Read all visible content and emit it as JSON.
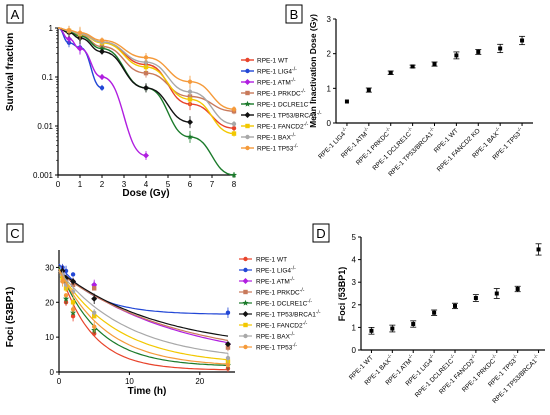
{
  "chart_data": [
    {
      "panel": "A",
      "type": "line",
      "xlabel": "Dose (Gy)",
      "ylabel": "Survival fraction",
      "x_ticks": [
        0,
        1,
        2,
        3,
        4,
        5,
        6,
        7,
        8
      ],
      "y_tick_labels": [
        "1",
        "0.1",
        "0.01",
        "0.001"
      ],
      "y_scale": "log",
      "xlim": [
        0,
        8
      ],
      "ylim": [
        0.001,
        1
      ],
      "legend_position": "right",
      "series": [
        {
          "name": "RPE-1 WT",
          "color": "#e8432b",
          "x": [
            0,
            0.5,
            1,
            2,
            4,
            6,
            8
          ],
          "y": [
            1,
            0.88,
            0.74,
            0.52,
            0.18,
            0.028,
            0.009
          ]
        },
        {
          "name": "RPE-1 LIG4",
          "sup": "-/-",
          "color": "#2247d6",
          "x": [
            0,
            0.5,
            1,
            2
          ],
          "y": [
            1,
            0.5,
            0.4,
            0.06
          ]
        },
        {
          "name": "RPE-1 ATM",
          "sup": "-/-",
          "color": "#b01ee0",
          "x": [
            0,
            0.5,
            1,
            2,
            4
          ],
          "y": [
            1,
            0.6,
            0.38,
            0.1,
            0.0025
          ]
        },
        {
          "name": "RPE-1 PRKDC",
          "sup": "-/-",
          "color": "#c8795a",
          "x": [
            0,
            0.5,
            1,
            2,
            4,
            6,
            8
          ],
          "y": [
            1,
            0.85,
            0.7,
            0.42,
            0.12,
            0.04,
            0.02
          ]
        },
        {
          "name": "RPE-1 DCLRE1C",
          "sup": "-/-",
          "color": "#1a7a2a",
          "x": [
            0,
            0.5,
            1,
            2,
            4,
            6,
            8
          ],
          "y": [
            1,
            0.85,
            0.68,
            0.38,
            0.06,
            0.006,
            0.0009
          ]
        },
        {
          "name": "RPE-1 TP53/BRCA1",
          "sup": "-/-",
          "color": "#111111",
          "x": [
            0,
            0.5,
            1,
            2,
            4,
            6
          ],
          "y": [
            1,
            0.8,
            0.62,
            0.33,
            0.06,
            0.012
          ]
        },
        {
          "name": "RPE-1 FANCD2",
          "sup": "-/-",
          "color": "#f2c800",
          "x": [
            0,
            0.5,
            1,
            2,
            4,
            6,
            8
          ],
          "y": [
            1,
            0.88,
            0.75,
            0.5,
            0.16,
            0.035,
            0.007
          ]
        },
        {
          "name": "RPE-1 BAX",
          "sup": "-/-",
          "color": "#a8a8a8",
          "x": [
            0,
            0.5,
            1,
            2,
            4,
            6,
            8
          ],
          "y": [
            1,
            0.88,
            0.76,
            0.52,
            0.2,
            0.05,
            0.011
          ]
        },
        {
          "name": "RPE-1 TP53",
          "sup": "-/-",
          "color": "#f59a3a",
          "x": [
            0,
            0.5,
            1,
            2,
            4,
            6,
            8
          ],
          "y": [
            1,
            0.9,
            0.8,
            0.56,
            0.25,
            0.08,
            0.022
          ]
        }
      ]
    },
    {
      "panel": "B",
      "type": "scatter",
      "ylabel": "Mean Inactivation Dose (Gy)",
      "y_ticks": [
        0,
        1,
        2,
        3
      ],
      "ylim": [
        0,
        3
      ],
      "categories": [
        {
          "name": "RPE-1 LIG4",
          "sup": "-/-"
        },
        {
          "name": "RPE-1 ATM",
          "sup": "-/-"
        },
        {
          "name": "RPE-1 PRKDC",
          "sup": "-/-"
        },
        {
          "name": "RPE-1 DCLRE1C",
          "sup": "-/-"
        },
        {
          "name": "RPE-1 TP53/BRCA1",
          "sup": "-/-"
        },
        {
          "name": "RPE-1 WT",
          "sup": ""
        },
        {
          "name": "RPE-1 FANCD2 KO",
          "sup": ""
        },
        {
          "name": "RPE-1 BAX",
          "sup": "-/-"
        },
        {
          "name": "RPE-1 TP53",
          "sup": "-/-"
        }
      ],
      "values": [
        0.62,
        0.95,
        1.45,
        1.63,
        1.7,
        1.95,
        2.05,
        2.15,
        2.38
      ],
      "errors": [
        0.0,
        0.06,
        0.05,
        0.04,
        0.06,
        0.1,
        0.07,
        0.12,
        0.12
      ]
    },
    {
      "panel": "C",
      "type": "line",
      "xlabel": "Time (h)",
      "ylabel": "Foci (53BP1)",
      "x_ticks": [
        0,
        10,
        20
      ],
      "y_ticks": [
        0,
        10,
        20,
        30
      ],
      "xlim": [
        0,
        25
      ],
      "ylim": [
        0,
        35
      ],
      "legend_position": "right",
      "series": [
        {
          "name": "RPE-1 WT",
          "color": "#e8432b",
          "x": [
            0.5,
            1,
            2,
            5,
            24
          ],
          "y": [
            26,
            20,
            16,
            11,
            1
          ],
          "fit": {
            "y0": 30,
            "plateau": 0.5,
            "k": 0.22
          }
        },
        {
          "name": "RPE-1 LIG4",
          "sup": "-/-",
          "color": "#2247d6",
          "x": [
            0.5,
            1,
            2,
            5,
            24
          ],
          "y": [
            30,
            29,
            28,
            25,
            17
          ],
          "fit": {
            "y0": 31,
            "plateau": 16.5,
            "k": 0.2
          }
        },
        {
          "name": "RPE-1 ATM",
          "sup": "-/-",
          "color": "#b01ee0",
          "x": [
            0.5,
            1,
            2,
            5,
            24
          ],
          "y": [
            29,
            27,
            26,
            25,
            8
          ],
          "fit": {
            "y0": 29,
            "plateau": 2,
            "k": 0.06
          }
        },
        {
          "name": "RPE-1 PRKDC",
          "sup": "-/-",
          "color": "#c8795a",
          "x": [
            0.5,
            1,
            2,
            5,
            24
          ],
          "y": [
            28,
            26,
            25,
            24,
            7
          ],
          "fit": {
            "y0": 28.5,
            "plateau": 3,
            "k": 0.06
          }
        },
        {
          "name": "RPE-1 DCLRE1C",
          "sup": "-/-",
          "color": "#1a7a2a",
          "x": [
            0.5,
            1,
            2,
            5,
            24
          ],
          "y": [
            27,
            21,
            17,
            12,
            2
          ],
          "fit": {
            "y0": 30,
            "plateau": 1.5,
            "k": 0.18
          }
        },
        {
          "name": "RPE-1 TP53/BRCA1",
          "sup": "-/-",
          "color": "#111111",
          "x": [
            0.5,
            1,
            2,
            5,
            24
          ],
          "y": [
            29,
            27,
            26,
            21,
            8
          ],
          "fit": {
            "y0": 29,
            "plateau": 6,
            "k": 0.07
          }
        },
        {
          "name": "RPE-1 FANCD2",
          "sup": "-/-",
          "color": "#f2c800",
          "x": [
            0.5,
            1,
            2,
            5,
            24
          ],
          "y": [
            27,
            24,
            20,
            16,
            3
          ],
          "fit": {
            "y0": 29,
            "plateau": 2,
            "k": 0.12
          }
        },
        {
          "name": "RPE-1 BAX",
          "sup": "-/-",
          "color": "#a8a8a8",
          "x": [
            0.5,
            1,
            2,
            5,
            24
          ],
          "y": [
            28,
            25,
            23,
            17,
            4
          ],
          "fit": {
            "y0": 29,
            "plateau": 3,
            "k": 0.1
          }
        },
        {
          "name": "RPE-1 TP53",
          "sup": "-/-",
          "color": "#f59a3a",
          "x": [
            0.5,
            1,
            2,
            5,
            24
          ],
          "y": [
            26,
            22,
            18,
            13,
            2
          ],
          "fit": {
            "y0": 29.5,
            "plateau": 1.5,
            "k": 0.15
          }
        }
      ]
    },
    {
      "panel": "D",
      "type": "scatter",
      "ylabel": "Foci (53BP1)",
      "y_ticks": [
        0,
        1,
        2,
        3,
        4,
        5
      ],
      "ylim": [
        0,
        5
      ],
      "categories": [
        {
          "name": "RPE-1 WT",
          "sup": ""
        },
        {
          "name": "RPE-1 BAX",
          "sup": "-/-"
        },
        {
          "name": "RPE-1 ATM",
          "sup": "-/-"
        },
        {
          "name": "RPE-1 LIG4",
          "sup": "-/-"
        },
        {
          "name": "RPE-1 DCLRE1C",
          "sup": "-/-"
        },
        {
          "name": "RPE-1 FANCD2",
          "sup": "-/-"
        },
        {
          "name": "RPE-1 PRKDC",
          "sup": "-/-"
        },
        {
          "name": "RPE-1 TP53",
          "sup": "-/-"
        },
        {
          "name": "RPE-1 TP53/BRCA1",
          "sup": "-/-"
        }
      ],
      "values": [
        0.85,
        0.95,
        1.15,
        1.65,
        1.95,
        2.3,
        2.5,
        2.7,
        4.45
      ],
      "errors": [
        0.15,
        0.15,
        0.14,
        0.12,
        0.12,
        0.15,
        0.22,
        0.12,
        0.25
      ]
    }
  ]
}
